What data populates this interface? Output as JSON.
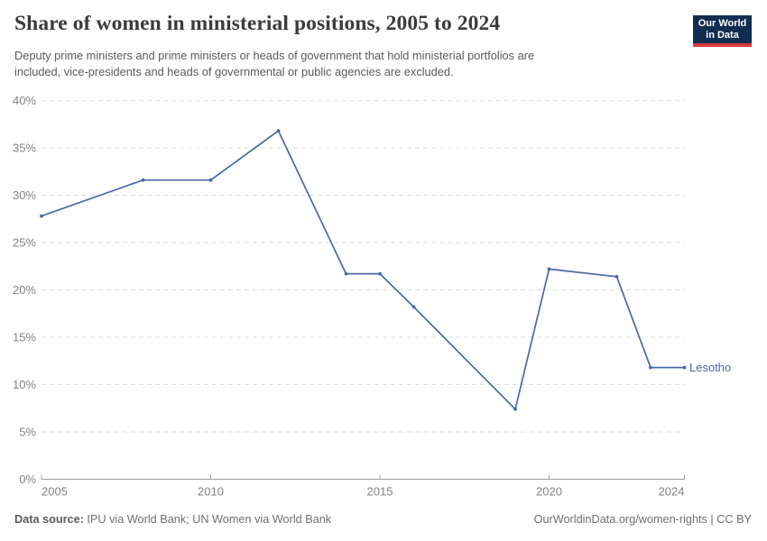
{
  "header": {
    "title": "Share of women in ministerial positions, 2005 to 2024",
    "subtitle_lines": [
      "Deputy prime ministers and prime ministers or heads of government that hold ministerial portfolios are",
      "included, vice-presidents and heads of governmental or public agencies are excluded."
    ],
    "logo": {
      "line1": "Our World",
      "line2": "in Data",
      "bg_color": "#112e51",
      "accent_color": "#d73a3c"
    }
  },
  "chart_data": {
    "type": "line",
    "title": "Share of women in ministerial positions, 2005 to 2024",
    "xlabel": "",
    "ylabel": "",
    "y_unit": "%",
    "xlim": [
      2005,
      2024
    ],
    "ylim": [
      0,
      40
    ],
    "xticks": [
      2005,
      2010,
      2015,
      2020,
      2024
    ],
    "yticks": [
      0,
      5,
      10,
      15,
      20,
      25,
      30,
      35,
      40
    ],
    "grid": true,
    "legend": "line-end-label",
    "series": [
      {
        "name": "Lesotho",
        "color": "#4a69a3",
        "x": [
          2005,
          2008,
          2010,
          2012,
          2014,
          2015,
          2016,
          2019,
          2020,
          2022,
          2023,
          2024
        ],
        "y": [
          27.8,
          31.6,
          31.6,
          36.8,
          21.7,
          21.7,
          18.2,
          7.4,
          22.2,
          21.4,
          11.8,
          11.8
        ]
      }
    ]
  },
  "footer": {
    "source_label": "Data source:",
    "source_text": "IPU via World Bank; UN Women via World Bank",
    "credit": "OurWorldinData.org/women-rights | CC BY"
  },
  "colors": {
    "line": "#4a69a3",
    "grid": "#dedede",
    "axis": "#9e9e9e",
    "tick_label": "#828282"
  }
}
